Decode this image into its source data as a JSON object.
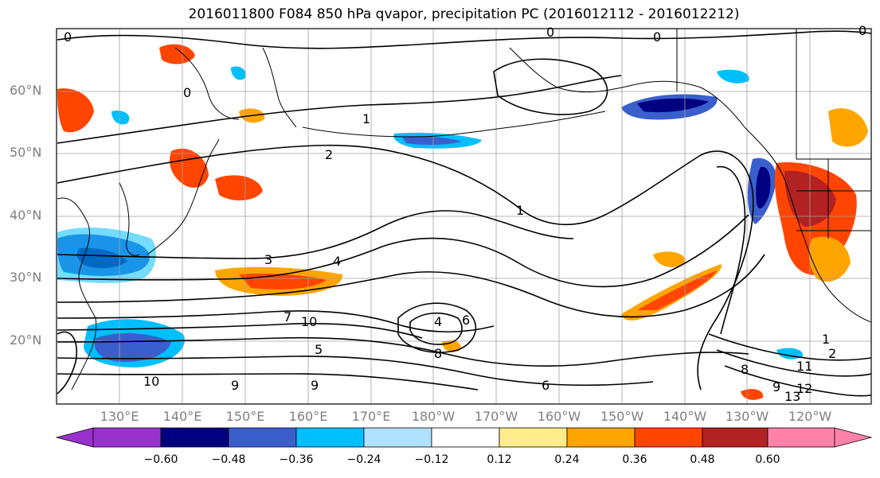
{
  "title": "2016011800 F084 850 hPa qvapor, precipitation PC (2016012112 - 2016012212)",
  "lat_labels": [
    "60°N",
    "50°N",
    "40°N",
    "30°N",
    "20°N"
  ],
  "lon_labels": [
    "130°E",
    "140°E",
    "150°E",
    "160°E",
    "170°E",
    "180°W",
    "170°W",
    "160°W",
    "150°W",
    "140°W",
    "130°W",
    "120°W"
  ],
  "colorbar": {
    "ticks": [
      "−0.60",
      "−0.48",
      "−0.36",
      "−0.24",
      "−0.12",
      "0.12",
      "0.24",
      "0.36",
      "0.48",
      "0.60"
    ],
    "colors": [
      "#9932cc",
      "#000080",
      "#3a5fcd",
      "#00bfff",
      "#b0e2ff",
      "#ffffff",
      "#ffec8b",
      "#ffa500",
      "#ff4500",
      "#b22222",
      "#ff82ab"
    ]
  },
  "contour_labels": [
    "0",
    "0",
    "0",
    "0",
    "0",
    "1",
    "1",
    "1",
    "2",
    "2",
    "3",
    "4",
    "4",
    "5",
    "6",
    "6",
    "7",
    "8",
    "8",
    "9",
    "9",
    "9",
    "10",
    "10",
    "11",
    "12",
    "13"
  ],
  "colors": {
    "frame": "#000000",
    "contour": "#000000",
    "grid": "#a0a0a0",
    "axis_label": "#7f7f7f"
  }
}
